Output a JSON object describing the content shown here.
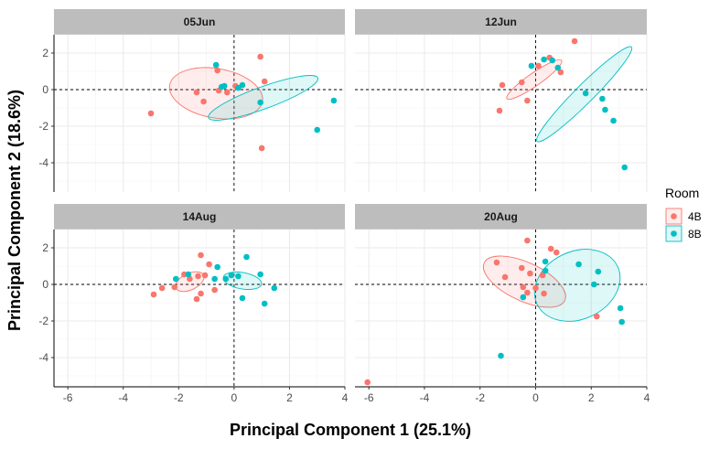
{
  "chart_data": {
    "type": "scatter",
    "xlabel": "Principal Component 1 (25.1%)",
    "ylabel": "Principal Component 2 (18.6%)",
    "xlim": [
      -6.5,
      4
    ],
    "ylim": [
      -5.6,
      3
    ],
    "xticks": [
      -6,
      -4,
      -2,
      0,
      2,
      4
    ],
    "yticks": [
      -4,
      -2,
      0,
      2
    ],
    "xtick_labels": [
      "-6",
      "-4",
      "-2",
      "0",
      "2",
      "4"
    ],
    "ytick_labels": [
      "-4",
      "-2",
      "0",
      "2"
    ],
    "grid": true,
    "reference_lines": {
      "x": 0,
      "y": 0,
      "style": "dashed"
    },
    "legend": {
      "title": "Room",
      "position": "right",
      "entries": [
        {
          "label": "4B",
          "color": "#F8766D"
        },
        {
          "label": "8B",
          "color": "#00BFC4"
        }
      ]
    },
    "panels": [
      {
        "title": "05Jun",
        "series": [
          {
            "name": "4B",
            "color": "#F8766D",
            "points": [
              [
                -3.0,
                -1.3
              ],
              [
                -0.6,
                1.05
              ],
              [
                -1.35,
                -0.15
              ],
              [
                -1.1,
                -0.65
              ],
              [
                -0.55,
                -0.05
              ],
              [
                -0.25,
                -0.15
              ],
              [
                0.95,
                1.8
              ],
              [
                1.1,
                0.45
              ],
              [
                1.0,
                -3.2
              ],
              [
                0.05,
                0.2
              ]
            ],
            "ellipse": {
              "cx": -0.65,
              "cy": -0.2,
              "rx": 1.7,
              "ry": 1.35,
              "angle": -10
            }
          },
          {
            "name": "8B",
            "color": "#00BFC4",
            "points": [
              [
                -0.65,
                1.35
              ],
              [
                -0.45,
                0.15
              ],
              [
                -0.35,
                0.2
              ],
              [
                0.15,
                0.1
              ],
              [
                0.3,
                0.25
              ],
              [
                0.95,
                -0.7
              ],
              [
                3.0,
                -2.2
              ],
              [
                3.6,
                -0.6
              ]
            ],
            "ellipse": {
              "cx": 1.05,
              "cy": -0.45,
              "rx": 2.1,
              "ry": 0.6,
              "angle": 20
            }
          }
        ]
      },
      {
        "title": "12Jun",
        "series": [
          {
            "name": "4B",
            "color": "#F8766D",
            "points": [
              [
                -1.2,
                0.25
              ],
              [
                -1.3,
                -1.15
              ],
              [
                -0.5,
                0.4
              ],
              [
                -0.3,
                -0.6
              ],
              [
                0.5,
                1.75
              ],
              [
                0.9,
                0.95
              ],
              [
                1.4,
                2.65
              ],
              [
                0.1,
                1.3
              ]
            ],
            "ellipse": {
              "cx": -0.05,
              "cy": 0.55,
              "rx": 1.2,
              "ry": 0.35,
              "angle": 35
            }
          },
          {
            "name": "8B",
            "color": "#00BFC4",
            "points": [
              [
                -0.15,
                1.3
              ],
              [
                0.3,
                1.65
              ],
              [
                0.6,
                1.6
              ],
              [
                0.8,
                1.2
              ],
              [
                1.8,
                -0.2
              ],
              [
                2.4,
                -0.5
              ],
              [
                2.5,
                -1.1
              ],
              [
                2.8,
                -1.7
              ],
              [
                3.2,
                -4.25
              ]
            ],
            "ellipse": {
              "cx": 1.75,
              "cy": -0.25,
              "rx": 2.4,
              "ry": 0.5,
              "angle": 45
            }
          }
        ]
      },
      {
        "title": "14Aug",
        "series": [
          {
            "name": "4B",
            "color": "#F8766D",
            "points": [
              [
                -2.9,
                -0.55
              ],
              [
                -2.6,
                -0.2
              ],
              [
                -2.15,
                -0.15
              ],
              [
                -1.8,
                0.55
              ],
              [
                -1.6,
                0.3
              ],
              [
                -1.3,
                0.45
              ],
              [
                -1.2,
                1.6
              ],
              [
                -1.05,
                0.5
              ],
              [
                -0.9,
                1.1
              ],
              [
                -0.7,
                -0.3
              ],
              [
                -1.35,
                -0.8
              ],
              [
                -1.2,
                -0.5
              ]
            ],
            "ellipse": {
              "cx": -1.6,
              "cy": 0.15,
              "rx": 0.55,
              "ry": 0.45,
              "angle": 25
            }
          },
          {
            "name": "8B",
            "color": "#00BFC4",
            "points": [
              [
                -2.1,
                0.3
              ],
              [
                -1.65,
                0.55
              ],
              [
                -0.6,
                0.95
              ],
              [
                -0.7,
                0.3
              ],
              [
                -0.3,
                0.3
              ],
              [
                -0.1,
                0.5
              ],
              [
                0.15,
                0.45
              ],
              [
                0.3,
                -0.75
              ],
              [
                0.45,
                1.5
              ],
              [
                0.95,
                0.55
              ],
              [
                1.1,
                -1.05
              ],
              [
                1.45,
                -0.2
              ]
            ],
            "ellipse": {
              "cx": 0.3,
              "cy": 0.2,
              "rx": 0.7,
              "ry": 0.45,
              "angle": -10
            }
          }
        ]
      },
      {
        "title": "20Aug",
        "series": [
          {
            "name": "4B",
            "color": "#F8766D",
            "points": [
              [
                -6.05,
                -5.35
              ],
              [
                -1.4,
                1.2
              ],
              [
                -1.1,
                0.4
              ],
              [
                -0.5,
                0.9
              ],
              [
                -0.45,
                -0.15
              ],
              [
                -0.2,
                0.6
              ],
              [
                -0.3,
                -0.45
              ],
              [
                0.0,
                -0.2
              ],
              [
                0.3,
                -0.5
              ],
              [
                0.55,
                1.95
              ],
              [
                0.75,
                1.75
              ],
              [
                0.25,
                0.5
              ],
              [
                2.2,
                -1.75
              ],
              [
                -0.3,
                2.4
              ]
            ],
            "ellipse": {
              "cx": -0.4,
              "cy": 0.15,
              "rx": 1.6,
              "ry": 1.05,
              "angle": -25
            }
          },
          {
            "name": "8B",
            "color": "#00BFC4",
            "points": [
              [
                -1.25,
                -3.9
              ],
              [
                -0.45,
                -0.7
              ],
              [
                0.35,
                1.25
              ],
              [
                0.35,
                0.75
              ],
              [
                1.55,
                1.1
              ],
              [
                2.1,
                0.0
              ],
              [
                2.25,
                0.7
              ],
              [
                3.05,
                -1.3
              ],
              [
                3.1,
                -2.05
              ]
            ],
            "ellipse": {
              "cx": 1.5,
              "cy": -0.05,
              "rx": 1.6,
              "ry": 1.85,
              "angle": 25
            }
          }
        ]
      }
    ]
  }
}
